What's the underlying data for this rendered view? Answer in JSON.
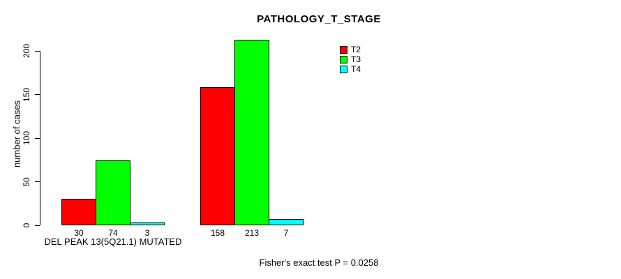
{
  "chart_data": {
    "type": "bar",
    "title": "PATHOLOGY_T_STAGE",
    "xlabel": "",
    "ylabel": "number of cases",
    "ylim": [
      0,
      200
    ],
    "yticks": [
      0,
      50,
      100,
      150,
      200
    ],
    "grid": false,
    "legend_position": "top-right",
    "show_bar_value_labels": true,
    "categories": [
      "DEL PEAK 13(5Q21.1) MUTATED",
      ""
    ],
    "series": [
      {
        "name": "T2",
        "color": "#ff0000",
        "values": [
          30,
          158
        ]
      },
      {
        "name": "T3",
        "color": "#00ff00",
        "values": [
          74,
          213
        ]
      },
      {
        "name": "T4",
        "color": "#00ffff",
        "values": [
          3,
          7
        ]
      }
    ],
    "annotation": "Fisher's exact test P = 0.0258",
    "colors": {
      "axis": "#000000",
      "text": "#000000",
      "background": "#ffffff"
    }
  }
}
